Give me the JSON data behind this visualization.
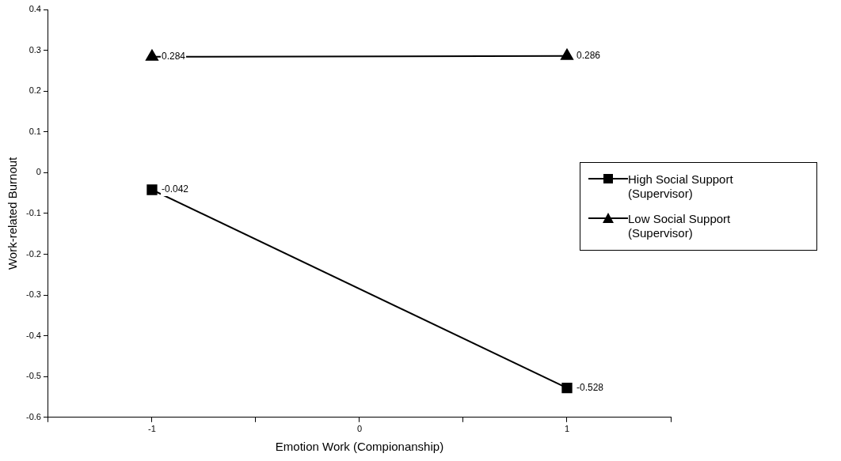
{
  "chart_data": {
    "type": "line",
    "xlabel": "Emotion Work (Compionanship)",
    "ylabel": "Work-related Burnout",
    "x": [
      -1,
      1
    ],
    "series": [
      {
        "name": "High Social Support (Supervisor)",
        "color": "#000000",
        "marker": "square",
        "values": [
          -0.042,
          -0.528
        ]
      },
      {
        "name": "Low Social Support (Supervisor)",
        "color": "#000000",
        "marker": "triangle",
        "values": [
          0.284,
          0.286
        ]
      }
    ],
    "xlim": [
      -1.5,
      1.5
    ],
    "xticks": [
      {
        "value": -1.5,
        "label": null
      },
      -1,
      {
        "value": -0.5,
        "label": null
      },
      0,
      {
        "value": 0.5,
        "label": null
      },
      1,
      {
        "value": 1.5,
        "label": null
      }
    ],
    "ylim": [
      -0.6,
      0.4
    ],
    "yticks": [
      -0.6,
      -0.5,
      -0.4,
      -0.3,
      -0.2,
      -0.1,
      0,
      0.1,
      0.2,
      0.3,
      0.4
    ],
    "grid": false,
    "legend": "right",
    "data_labels": true
  }
}
